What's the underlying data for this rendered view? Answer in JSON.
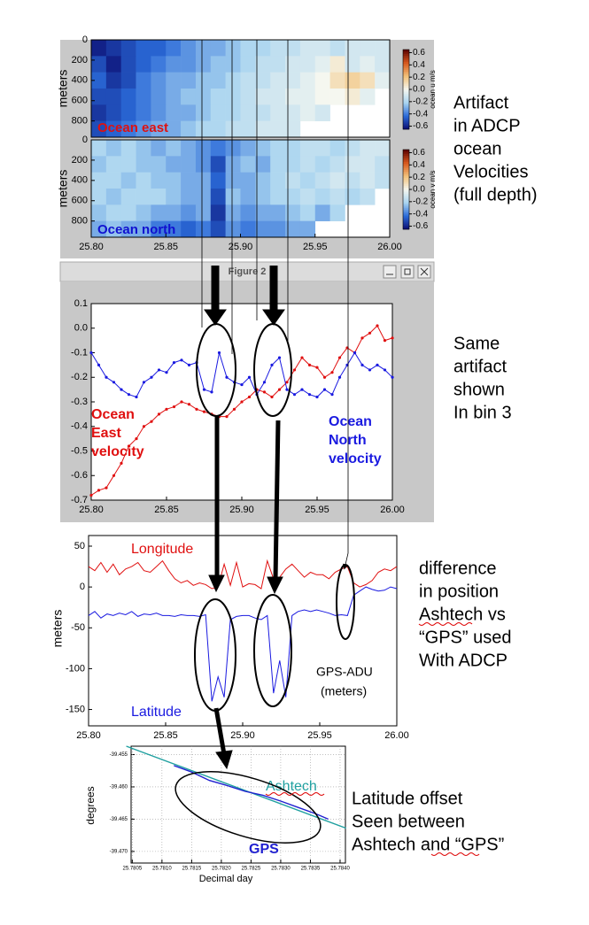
{
  "chart_data": [
    {
      "type": "heatmap",
      "label": "Ocean east",
      "label_color": "#e01010",
      "ylabel": "meters",
      "colorbar_label": "ocean u m/s",
      "xbins": [
        25.8,
        25.81,
        25.82,
        25.83,
        25.84,
        25.85,
        25.86,
        25.87,
        25.88,
        25.89,
        25.9,
        25.91,
        25.92,
        25.93,
        25.94,
        25.95,
        25.96,
        25.97,
        25.98,
        25.99,
        26.0
      ],
      "ybins": [
        0,
        160,
        320,
        480,
        640,
        800,
        960
      ],
      "xlim": [
        25.8,
        26.0
      ],
      "ylim": [
        0,
        960
      ],
      "y_inverted": true,
      "yticks": [
        0,
        200,
        400,
        600,
        800
      ],
      "clim": [
        -0.65,
        0.65
      ],
      "colormap": [
        "#0b0b70",
        "#2a6ad8",
        "#a9d4f0",
        "#f5f7f0",
        "#f2c27a",
        "#d8581e",
        "#5a0000"
      ],
      "cticks": [
        0.6,
        0.4,
        0.2,
        {
          "value": 0,
          "label": "0.0"
        },
        -0.2,
        -0.4,
        -0.6
      ],
      "values": [
        [
          -0.6,
          -0.55,
          -0.5,
          -0.45,
          -0.45,
          -0.4,
          -0.35,
          -0.3,
          -0.3,
          -0.25,
          -0.2,
          -0.2,
          -0.15,
          -0.15,
          -0.1,
          -0.1,
          -0.15,
          -0.1,
          -0.1,
          -0.1
        ],
        [
          -0.5,
          -0.6,
          -0.5,
          -0.45,
          -0.4,
          -0.35,
          -0.35,
          -0.3,
          -0.25,
          -0.25,
          -0.2,
          -0.15,
          -0.15,
          -0.1,
          -0.1,
          -0.05,
          0.05,
          -0.1,
          -0.05,
          -0.1
        ],
        [
          -0.45,
          -0.55,
          -0.5,
          -0.4,
          -0.35,
          -0.3,
          -0.3,
          -0.25,
          -0.25,
          -0.2,
          -0.15,
          -0.15,
          -0.1,
          -0.1,
          -0.05,
          0,
          0.1,
          0.15,
          0.1,
          -0.05
        ],
        [
          -0.5,
          -0.5,
          -0.45,
          -0.4,
          -0.35,
          -0.3,
          -0.25,
          -0.25,
          -0.2,
          -0.2,
          -0.15,
          -0.1,
          -0.1,
          -0.05,
          -0.05,
          0,
          0,
          0.05,
          -0.05,
          null
        ],
        [
          -0.55,
          -0.5,
          -0.45,
          -0.4,
          -0.35,
          -0.3,
          -0.3,
          -0.25,
          -0.2,
          -0.2,
          -0.15,
          -0.15,
          -0.1,
          -0.1,
          -0.05,
          -0.1,
          null,
          null,
          null,
          null
        ],
        [
          -0.5,
          -0.45,
          -0.4,
          -0.35,
          -0.3,
          -0.3,
          -0.25,
          -0.2,
          -0.2,
          -0.15,
          -0.15,
          -0.1,
          -0.1,
          -0.1,
          null,
          null,
          null,
          null,
          null,
          null
        ]
      ]
    },
    {
      "type": "heatmap",
      "label": "Ocean north",
      "label_color": "#1010d0",
      "ylabel": "meters",
      "colorbar_label": "ocean v m/s",
      "xbins": [
        25.8,
        25.81,
        25.82,
        25.83,
        25.84,
        25.85,
        25.86,
        25.87,
        25.88,
        25.89,
        25.9,
        25.91,
        25.92,
        25.93,
        25.94,
        25.95,
        25.96,
        25.97,
        25.98,
        25.99,
        26.0
      ],
      "ybins": [
        0,
        160,
        320,
        480,
        640,
        800,
        960
      ],
      "xlim": [
        25.8,
        26.0
      ],
      "ylim": [
        0,
        960
      ],
      "y_inverted": true,
      "yticks": [
        0,
        200,
        400,
        600,
        800
      ],
      "xticks": [
        {
          "value": 25.8,
          "label": "25.80"
        },
        {
          "value": 25.85,
          "label": "25.85"
        },
        {
          "value": 25.9,
          "label": "25.90"
        },
        {
          "value": 25.95,
          "label": "25.95"
        },
        {
          "value": 26,
          "label": "26.00"
        }
      ],
      "clim": [
        -0.65,
        0.65
      ],
      "colormap": [
        "#0b0b70",
        "#2a6ad8",
        "#a9d4f0",
        "#f5f7f0",
        "#f2c27a",
        "#d8581e",
        "#5a0000"
      ],
      "cticks": [
        0.6,
        0.4,
        0.2,
        {
          "value": 0,
          "label": "0.0"
        },
        -0.2,
        -0.4,
        -0.6
      ],
      "values": [
        [
          -0.2,
          -0.25,
          -0.2,
          -0.25,
          -0.3,
          -0.25,
          -0.3,
          -0.35,
          -0.4,
          -0.35,
          -0.3,
          -0.25,
          -0.2,
          -0.2,
          -0.15,
          -0.15,
          -0.2,
          -0.15,
          -0.1,
          -0.1
        ],
        [
          -0.25,
          -0.2,
          -0.2,
          -0.25,
          -0.25,
          -0.3,
          -0.3,
          -0.35,
          -0.5,
          -0.3,
          -0.25,
          -0.3,
          -0.2,
          -0.2,
          -0.15,
          -0.2,
          -0.15,
          -0.1,
          -0.1,
          -0.15
        ],
        [
          -0.2,
          -0.2,
          -0.25,
          -0.2,
          -0.25,
          -0.25,
          -0.3,
          -0.3,
          -0.45,
          -0.3,
          -0.3,
          -0.25,
          -0.2,
          -0.15,
          -0.2,
          -0.15,
          -0.1,
          -0.15,
          -0.1,
          -0.15
        ],
        [
          -0.2,
          -0.25,
          -0.2,
          -0.2,
          -0.2,
          -0.25,
          -0.3,
          -0.3,
          -0.5,
          -0.25,
          -0.3,
          -0.25,
          -0.2,
          -0.2,
          -0.15,
          -0.2,
          -0.15,
          -0.2,
          -0.15,
          null
        ],
        [
          -0.25,
          -0.2,
          -0.2,
          -0.25,
          -0.3,
          -0.3,
          -0.35,
          -0.3,
          -0.55,
          -0.3,
          -0.35,
          -0.3,
          -0.3,
          -0.25,
          -0.2,
          -0.3,
          -0.2,
          null,
          null,
          null
        ],
        [
          -0.3,
          -0.25,
          -0.3,
          -0.3,
          -0.4,
          -0.4,
          -0.45,
          -0.4,
          -0.5,
          -0.35,
          -0.4,
          -0.35,
          -0.35,
          -0.3,
          -0.3,
          null,
          null,
          null,
          null,
          null
        ]
      ]
    },
    {
      "type": "line",
      "window_title": "Figure 2",
      "markers": true,
      "xlim": [
        25.8,
        26.0
      ],
      "ylim": [
        -0.7,
        0.1
      ],
      "xticks": [
        {
          "value": 25.8,
          "label": "25.80"
        },
        {
          "value": 25.85,
          "label": "25.85"
        },
        {
          "value": 25.9,
          "label": "25.90"
        },
        {
          "value": 25.95,
          "label": "25.95"
        },
        {
          "value": 26,
          "label": "26.00"
        }
      ],
      "yticks": [
        0.1,
        {
          "value": 0,
          "label": "0.0"
        },
        -0.1,
        -0.2,
        -0.3,
        -0.4,
        -0.5,
        -0.6,
        -0.7
      ],
      "x": [
        25.8,
        25.805,
        25.81,
        25.815,
        25.82,
        25.825,
        25.83,
        25.835,
        25.84,
        25.845,
        25.85,
        25.855,
        25.86,
        25.865,
        25.87,
        25.875,
        25.88,
        25.885,
        25.89,
        25.895,
        25.9,
        25.905,
        25.91,
        25.915,
        25.92,
        25.925,
        25.93,
        25.935,
        25.94,
        25.945,
        25.95,
        25.955,
        25.96,
        25.965,
        25.97,
        25.975,
        25.98,
        25.985,
        25.99,
        25.995,
        26.0
      ],
      "series": [
        {
          "name": [
            "Ocean",
            "East",
            "velocity"
          ],
          "color": "#e01010",
          "values": [
            -0.68,
            -0.66,
            -0.65,
            -0.6,
            -0.55,
            -0.48,
            -0.45,
            -0.4,
            -0.38,
            -0.35,
            -0.33,
            -0.32,
            -0.3,
            -0.31,
            -0.33,
            -0.34,
            -0.35,
            -0.36,
            -0.36,
            -0.33,
            -0.3,
            -0.28,
            -0.25,
            -0.26,
            -0.28,
            -0.25,
            -0.22,
            -0.17,
            -0.12,
            -0.15,
            -0.16,
            -0.2,
            -0.18,
            -0.12,
            -0.08,
            -0.1,
            -0.04,
            -0.02,
            0.01,
            -0.05,
            -0.04
          ]
        },
        {
          "name": [
            "Ocean",
            "North",
            "velocity"
          ],
          "color": "#1a1ae0",
          "values": [
            -0.1,
            -0.15,
            -0.2,
            -0.22,
            -0.25,
            -0.27,
            -0.28,
            -0.22,
            -0.2,
            -0.17,
            -0.18,
            -0.14,
            -0.13,
            -0.15,
            -0.14,
            -0.25,
            -0.26,
            -0.1,
            -0.2,
            -0.22,
            -0.23,
            -0.2,
            -0.27,
            -0.22,
            -0.15,
            -0.12,
            -0.25,
            -0.27,
            -0.25,
            -0.27,
            -0.28,
            -0.25,
            -0.27,
            -0.2,
            -0.15,
            -0.1,
            -0.15,
            -0.17,
            -0.15,
            -0.17,
            -0.2
          ]
        }
      ]
    },
    {
      "type": "line",
      "ylabel": "meters",
      "xlim": [
        25.8,
        26.0
      ],
      "ylim": [
        -170,
        63
      ],
      "xticks": [
        {
          "value": 25.8,
          "label": "25.80"
        },
        {
          "value": 25.85,
          "label": "25.85"
        },
        {
          "value": 25.9,
          "label": "25.90"
        },
        {
          "value": 25.95,
          "label": "25.95"
        },
        {
          "value": 26,
          "label": "26.00"
        }
      ],
      "yticks": [
        50,
        0,
        -50,
        -100,
        -150
      ],
      "annotation": [
        "GPS-ADU",
        "(meters)"
      ],
      "x": [
        25.8,
        25.804,
        25.808,
        25.812,
        25.816,
        25.82,
        25.824,
        25.828,
        25.832,
        25.836,
        25.84,
        25.844,
        25.848,
        25.852,
        25.856,
        25.86,
        25.864,
        25.868,
        25.872,
        25.876,
        25.88,
        25.884,
        25.888,
        25.892,
        25.896,
        25.9,
        25.904,
        25.908,
        25.912,
        25.916,
        25.92,
        25.924,
        25.928,
        25.932,
        25.936,
        25.94,
        25.944,
        25.948,
        25.952,
        25.956,
        25.96,
        25.964,
        25.968,
        25.972,
        25.976,
        25.98,
        25.984,
        25.988,
        25.992,
        25.996,
        26.0
      ],
      "series": [
        {
          "name": [
            "Longitude"
          ],
          "color": "#e01010",
          "values": [
            25,
            20,
            30,
            18,
            28,
            15,
            22,
            25,
            30,
            20,
            18,
            25,
            32,
            20,
            10,
            5,
            8,
            2,
            5,
            3,
            -2,
            0,
            28,
            2,
            30,
            0,
            4,
            3,
            -2,
            32,
            10,
            12,
            22,
            28,
            20,
            12,
            18,
            15,
            15,
            10,
            18,
            22,
            25,
            5,
            0,
            3,
            8,
            18,
            22,
            20,
            25
          ]
        },
        {
          "name": [
            "Latitude"
          ],
          "color": "#1a1ae0",
          "values": [
            -35,
            -30,
            -38,
            -33,
            -35,
            -32,
            -34,
            -30,
            -36,
            -33,
            -34,
            -32,
            -35,
            -35,
            -36,
            -34,
            -35,
            -35,
            -36,
            -34,
            -140,
            -110,
            -135,
            -40,
            -36,
            -35,
            -35,
            -38,
            -40,
            -35,
            -130,
            -90,
            -135,
            -35,
            -30,
            -28,
            -30,
            -28,
            -30,
            -32,
            -35,
            -34,
            -35,
            -10,
            -5,
            0,
            -3,
            -5,
            -4,
            0,
            -2
          ]
        }
      ]
    },
    {
      "type": "line",
      "grid": true,
      "xlabel": "Decimal day",
      "ylabel": "degrees",
      "xlim": [
        25.78048,
        25.78409
      ],
      "ylim": [
        -39.4718,
        -39.4537
      ],
      "xticks": [
        {
          "value": 25.7805,
          "label": "25.7805"
        },
        {
          "value": 25.781,
          "label": "25.7810"
        },
        {
          "value": 25.7815,
          "label": "25.7815"
        },
        {
          "value": 25.782,
          "label": "25.7820"
        },
        {
          "value": 25.7825,
          "label": "25.7825"
        },
        {
          "value": 25.783,
          "label": "25.7830"
        },
        {
          "value": 25.7835,
          "label": "25.7835"
        },
        {
          "value": 25.784,
          "label": "25.7840"
        }
      ],
      "yticks": [
        -39.455,
        {
          "value": -39.46,
          "label": "-39.460"
        },
        -39.465,
        {
          "value": -39.47,
          "label": "-39.470"
        }
      ],
      "series": [
        {
          "name": [
            "Ashtech"
          ],
          "color": "#20a0a0",
          "x": [
            25.7804,
            25.7841
          ],
          "values": [
            -39.4537,
            -39.4664
          ]
        },
        {
          "name": [
            "GPS"
          ],
          "color": "#2020d0",
          "x": [
            25.7812,
            25.7815,
            25.7818,
            25.7821,
            25.7824,
            25.7827,
            25.783,
            25.7833,
            25.7836,
            25.7838
          ],
          "values": [
            -39.4567,
            -39.4577,
            -39.459,
            -39.4598,
            -39.4607,
            -39.4613,
            -39.4622,
            -39.4632,
            -39.4642,
            -39.465
          ]
        }
      ]
    }
  ],
  "notes": [
    [
      "Artifact",
      "in ADCP",
      "ocean",
      "Velocities",
      "(full depth)"
    ],
    [
      "Same",
      "artifact",
      "shown",
      "In bin 3"
    ],
    [
      "difference",
      "in position",
      "Ashtech vs",
      "“GPS” used",
      "With ADCP"
    ],
    [
      "Latitude offset",
      "Seen between",
      "Ashtech and “GPS”"
    ]
  ]
}
